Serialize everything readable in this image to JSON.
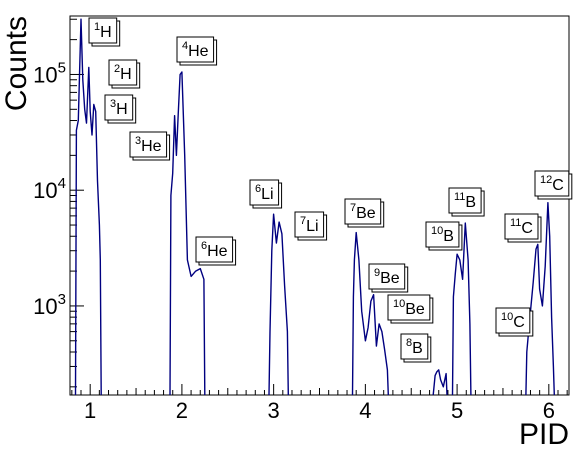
{
  "chart_data": {
    "type": "line",
    "title": "",
    "xlabel": "PID",
    "ylabel": "Counts",
    "xlim": [
      0.78,
      6.22
    ],
    "ylim": [
      170,
      320000
    ],
    "y_scale": "log",
    "grid": false,
    "line_color": "#000080",
    "x_ticks": [
      {
        "value": 1,
        "label": "1"
      },
      {
        "value": 2,
        "label": "2"
      },
      {
        "value": 3,
        "label": "3"
      },
      {
        "value": 4,
        "label": "4"
      },
      {
        "value": 5,
        "label": "5"
      },
      {
        "value": 6,
        "label": "6"
      }
    ],
    "y_ticks": [
      {
        "value": 1000,
        "base": "10",
        "exp": "3"
      },
      {
        "value": 10000,
        "base": "10",
        "exp": "4"
      },
      {
        "value": 100000,
        "base": "10",
        "exp": "5"
      }
    ],
    "segments": [
      {
        "x": [
          0.84,
          0.85,
          0.87,
          0.9,
          0.92,
          0.94,
          0.96,
          0.985,
          1.0,
          1.02,
          1.04,
          1.06,
          1.08,
          1.1,
          1.11,
          1.12
        ],
        "y": [
          170,
          33000,
          40000,
          300000,
          90000,
          50000,
          38000,
          115000,
          48000,
          30000,
          55000,
          48000,
          12000,
          5000,
          2500,
          170
        ]
      },
      {
        "x": [
          1.87,
          1.88,
          1.9,
          1.92,
          1.94,
          1.96,
          1.98,
          2.0,
          2.03,
          2.06,
          2.1,
          2.15,
          2.2,
          2.24,
          2.25
        ],
        "y": [
          170,
          9000,
          14000,
          44000,
          20000,
          45000,
          100000,
          105000,
          20000,
          2500,
          1800,
          2000,
          2100,
          1700,
          170
        ]
      },
      {
        "x": [
          2.95,
          2.96,
          2.98,
          3.0,
          3.03,
          3.06,
          3.09,
          3.12,
          3.15,
          3.16
        ],
        "y": [
          170,
          600,
          3000,
          6200,
          3500,
          5300,
          4200,
          1500,
          600,
          170
        ]
      },
      {
        "x": [
          3.86,
          3.87,
          3.88,
          3.9,
          3.93,
          3.96,
          4.0,
          4.03,
          4.06,
          4.09,
          4.12,
          4.15,
          4.18,
          4.21,
          4.24,
          4.25
        ],
        "y": [
          170,
          1200,
          2500,
          4300,
          2500,
          900,
          500,
          650,
          1100,
          1250,
          450,
          700,
          600,
          420,
          280,
          170
        ]
      },
      {
        "x": [
          4.74,
          4.76,
          4.78,
          4.8,
          4.82,
          4.85,
          4.88,
          4.89
        ],
        "y": [
          170,
          250,
          270,
          280,
          230,
          200,
          260,
          170
        ]
      },
      {
        "x": [
          4.95,
          4.96,
          4.98,
          5.0,
          5.03,
          5.06,
          5.09,
          5.12,
          5.14,
          5.15
        ],
        "y": [
          170,
          1200,
          1900,
          2800,
          2500,
          1700,
          5200,
          2500,
          700,
          170
        ]
      },
      {
        "x": [
          5.75,
          5.76,
          5.78,
          5.8,
          5.83,
          5.86,
          5.88,
          5.9,
          5.93,
          5.96,
          5.99,
          6.01,
          6.03,
          6.05,
          6.06
        ],
        "y": [
          170,
          400,
          600,
          900,
          1600,
          3100,
          3400,
          1400,
          1000,
          2200,
          7800,
          4000,
          800,
          300,
          170
        ]
      }
    ],
    "annotations": [
      {
        "iso": "1",
        "el": "H"
      },
      {
        "iso": "2",
        "el": "H"
      },
      {
        "iso": "3",
        "el": "H"
      },
      {
        "iso": "3",
        "el": "He"
      },
      {
        "iso": "4",
        "el": "He"
      },
      {
        "iso": "6",
        "el": "He"
      },
      {
        "iso": "6",
        "el": "Li"
      },
      {
        "iso": "7",
        "el": "Li"
      },
      {
        "iso": "7",
        "el": "Be"
      },
      {
        "iso": "9",
        "el": "Be"
      },
      {
        "iso": "10",
        "el": "Be"
      },
      {
        "iso": "8",
        "el": "B"
      },
      {
        "iso": "10",
        "el": "B"
      },
      {
        "iso": "11",
        "el": "B"
      },
      {
        "iso": "10",
        "el": "C"
      },
      {
        "iso": "11",
        "el": "C"
      },
      {
        "iso": "12",
        "el": "C"
      }
    ]
  }
}
